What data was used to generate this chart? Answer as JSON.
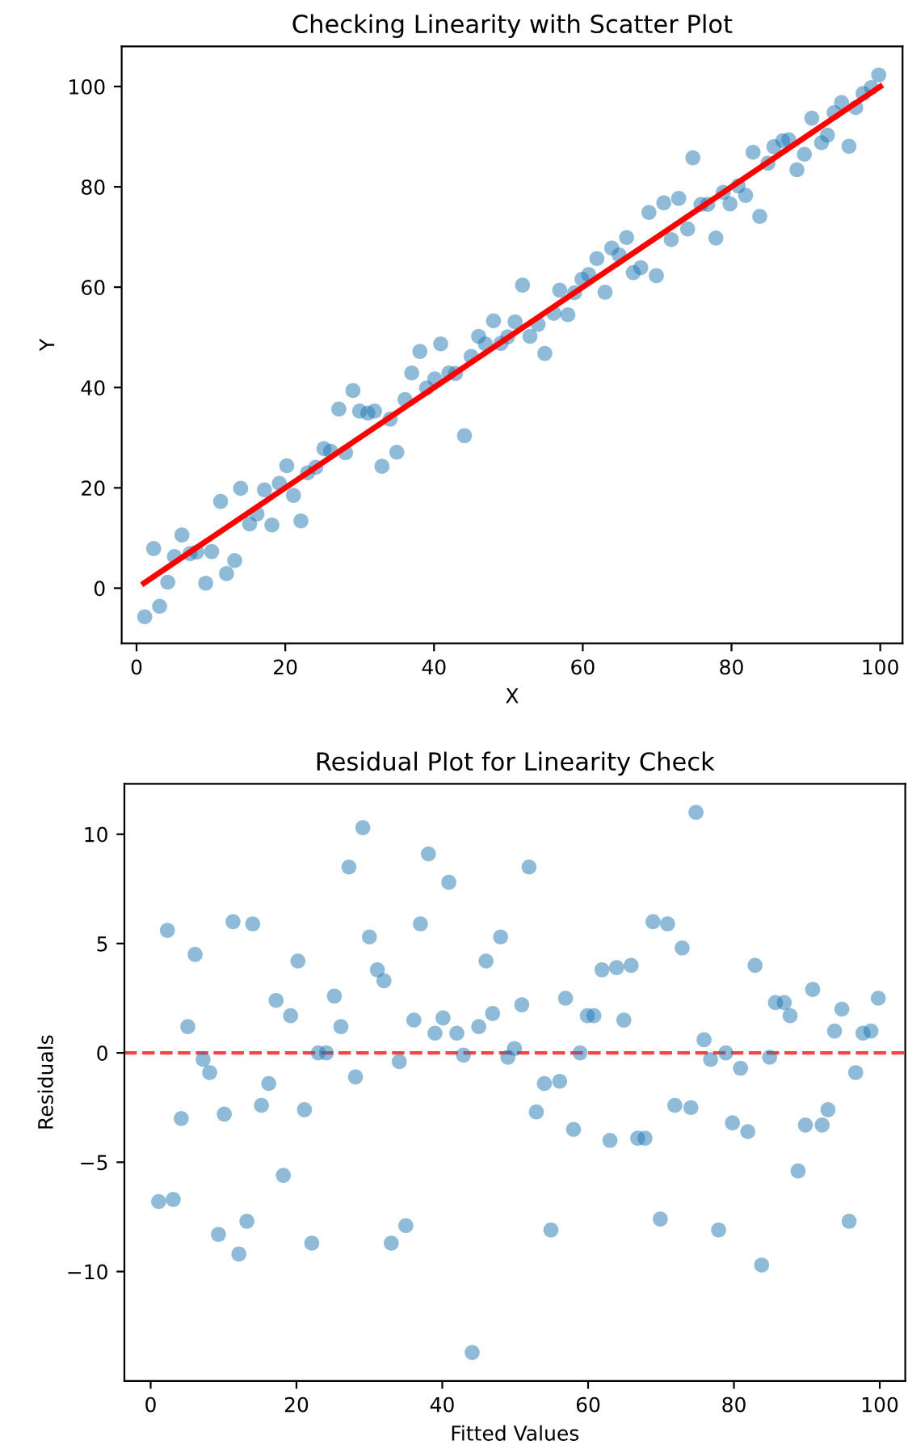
{
  "chart_data": [
    {
      "type": "scatter",
      "title": "Checking Linearity with Scatter Plot",
      "xlabel": "X",
      "ylabel": "Y",
      "xlim": [
        -2,
        103
      ],
      "ylim": [
        -11,
        108
      ],
      "xticks": [
        0,
        20,
        40,
        60,
        80,
        100
      ],
      "yticks": [
        0,
        20,
        40,
        60,
        80,
        100
      ],
      "grid": false,
      "series": [
        {
          "marker": "circle",
          "color": "#1f77b4",
          "x": [
            1.1,
            2.3,
            3.1,
            4.2,
            5.1,
            6.1,
            7.2,
            8.1,
            9.3,
            10.1,
            11.3,
            12.1,
            13.2,
            14.0,
            15.2,
            16.2,
            17.2,
            18.2,
            19.2,
            20.2,
            21.1,
            22.1,
            23.0,
            24.1,
            25.2,
            26.1,
            27.2,
            28.1,
            29.1,
            30.0,
            31.1,
            32.0,
            33.0,
            34.1,
            35.0,
            36.1,
            37.0,
            38.1,
            39.0,
            40.1,
            40.9,
            42.0,
            42.9,
            44.1,
            45.0,
            46.0,
            46.9,
            48.0,
            49.0,
            49.9,
            50.9,
            51.9,
            52.9,
            54.0,
            54.9,
            56.1,
            56.9,
            58.0,
            58.9,
            59.9,
            60.8,
            61.9,
            63.0,
            63.9,
            64.9,
            65.9,
            66.8,
            67.8,
            68.9,
            69.9,
            70.9,
            71.9,
            72.9,
            74.1,
            74.8,
            75.9,
            76.8,
            77.9,
            78.9,
            79.8,
            80.9,
            81.9,
            82.9,
            83.8,
            84.9,
            85.7,
            86.9,
            87.7,
            88.8,
            89.8,
            90.8,
            92.1,
            92.9,
            93.8,
            94.8,
            95.8,
            96.7,
            97.7,
            98.8,
            99.8
          ],
          "values": [
            -5.7,
            7.9,
            -3.6,
            1.2,
            6.3,
            10.6,
            6.9,
            7.2,
            1.0,
            7.3,
            17.3,
            2.9,
            5.5,
            19.9,
            12.8,
            14.8,
            19.6,
            12.6,
            20.9,
            24.4,
            18.5,
            13.4,
            23.0,
            24.1,
            27.8,
            27.3,
            35.7,
            27.0,
            39.4,
            35.3,
            34.9,
            35.3,
            24.3,
            33.7,
            27.1,
            37.6,
            42.9,
            47.2,
            39.9,
            41.7,
            48.7,
            42.9,
            42.8,
            30.4,
            46.2,
            50.2,
            48.7,
            53.3,
            48.8,
            50.1,
            53.1,
            60.4,
            50.2,
            52.6,
            46.8,
            54.8,
            59.4,
            54.5,
            58.9,
            61.6,
            62.5,
            65.7,
            59.0,
            67.8,
            66.4,
            69.9,
            62.9,
            63.9,
            74.9,
            62.3,
            76.8,
            69.5,
            77.7,
            71.6,
            85.8,
            76.5,
            76.5,
            69.8,
            78.9,
            76.6,
            80.2,
            78.3,
            86.9,
            74.1,
            84.7,
            88.0,
            89.2,
            89.4,
            83.4,
            86.5,
            93.7,
            88.8,
            90.3,
            94.8,
            96.8,
            88.1,
            95.8,
            98.6,
            99.8,
            102.3
          ]
        },
        {
          "type": "line",
          "color": "#ff0000",
          "x": [
            1,
            100
          ],
          "values": [
            1,
            100
          ]
        }
      ]
    },
    {
      "type": "scatter",
      "title": "Residual Plot for Linearity Check",
      "xlabel": "Fitted Values",
      "ylabel": "Residuals",
      "xlim": [
        -3.6,
        103.5
      ],
      "ylim": [
        -15,
        12.3
      ],
      "xticks": [
        0,
        20,
        40,
        60,
        80,
        100
      ],
      "yticks": [
        {
          "value": -10,
          "label": "−10"
        },
        {
          "value": -5,
          "label": "−5"
        },
        0,
        5,
        10
      ],
      "grid": false,
      "marker": "circle",
      "ref_lines": [
        {
          "axis": "y",
          "value": 0,
          "color": "#ff0000",
          "line_style": "dashed"
        }
      ],
      "series": [
        {
          "color": "#1f77b4",
          "x": [
            1.1,
            2.3,
            3.1,
            4.2,
            5.1,
            6.1,
            7.2,
            8.1,
            9.3,
            10.1,
            11.3,
            12.1,
            13.2,
            14.0,
            15.2,
            16.2,
            17.2,
            18.2,
            19.2,
            20.2,
            21.1,
            22.1,
            23.0,
            24.1,
            25.2,
            26.1,
            27.2,
            28.1,
            29.1,
            30.0,
            31.1,
            32.0,
            33.0,
            34.1,
            35.0,
            36.1,
            37.0,
            38.1,
            39.0,
            40.1,
            40.9,
            42.0,
            42.9,
            44.1,
            45.0,
            46.0,
            46.9,
            48.0,
            49.0,
            49.9,
            50.9,
            51.9,
            52.9,
            54.0,
            54.9,
            56.1,
            56.9,
            58.0,
            58.9,
            59.9,
            60.8,
            61.9,
            63.0,
            63.9,
            64.9,
            65.9,
            66.8,
            67.8,
            68.9,
            69.9,
            70.9,
            71.9,
            72.9,
            74.1,
            74.8,
            75.9,
            76.8,
            77.9,
            78.9,
            79.8,
            80.9,
            81.9,
            82.9,
            83.8,
            84.9,
            85.7,
            86.9,
            87.7,
            88.8,
            89.8,
            90.8,
            92.1,
            92.9,
            93.8,
            94.8,
            95.8,
            96.7,
            97.7,
            98.8,
            99.8
          ],
          "values": [
            -6.8,
            5.6,
            -6.7,
            -3.0,
            1.2,
            4.5,
            -0.3,
            -0.9,
            -8.3,
            -2.8,
            6.0,
            -9.2,
            -7.7,
            5.9,
            -2.4,
            -1.4,
            2.4,
            -5.6,
            1.7,
            4.2,
            -2.6,
            -8.7,
            0.0,
            0.0,
            2.6,
            1.2,
            8.5,
            -1.1,
            10.3,
            5.3,
            3.8,
            3.3,
            -8.7,
            -0.4,
            -7.9,
            1.5,
            5.9,
            9.1,
            0.9,
            1.6,
            7.8,
            0.9,
            -0.1,
            -13.7,
            1.2,
            4.2,
            1.8,
            5.3,
            -0.2,
            0.2,
            2.2,
            8.5,
            -2.7,
            -1.4,
            -8.1,
            -1.3,
            2.5,
            -3.5,
            0.0,
            1.7,
            1.7,
            3.8,
            -4.0,
            3.9,
            1.5,
            4.0,
            -3.9,
            -3.9,
            6.0,
            -7.6,
            5.9,
            -2.4,
            4.8,
            -2.5,
            11.0,
            0.6,
            -0.3,
            -8.1,
            0.0,
            -3.2,
            -0.7,
            -3.6,
            4.0,
            -9.7,
            -0.2,
            2.3,
            2.3,
            1.7,
            -5.4,
            -3.3,
            2.9,
            -3.3,
            -2.6,
            1.0,
            2.0,
            -7.7,
            -0.9,
            0.9,
            1.0,
            2.5
          ]
        }
      ]
    }
  ]
}
